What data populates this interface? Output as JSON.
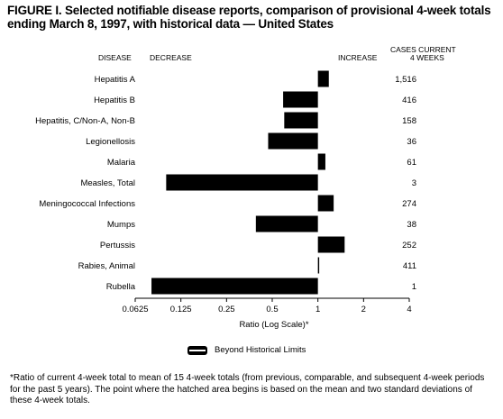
{
  "title": "FIGURE I. Selected notifiable disease reports, comparison of provisional 4-week totals ending March 8, 1997, with historical data — United States",
  "headers": {
    "disease": "DISEASE",
    "decrease": "DECREASE",
    "increase": "INCREASE",
    "cases_line1": "CASES CURRENT",
    "cases_line2": "4 WEEKS"
  },
  "legend": {
    "label": "Beyond Historical Limits"
  },
  "footnote": "*Ratio of current 4-week total to mean of 15 4-week totals (from previous, comparable, and subsequent 4-week periods for the past 5 years). The point where the hatched area begins is based on the mean and two standard deviations of these 4-week totals.",
  "colors": {
    "bar": "#000000",
    "axis": "#000000",
    "background": "#ffffff"
  },
  "chart_data": {
    "type": "bar",
    "orientation": "horizontal",
    "scale": "log2",
    "xlabel": "Ratio (Log Scale)*",
    "xlim": [
      0.0625,
      4
    ],
    "baseline": 1,
    "xticks": [
      0.0625,
      0.125,
      0.25,
      0.5,
      1,
      2,
      4
    ],
    "xtick_labels": [
      "0.0625",
      "0.125",
      "0.25",
      "0.5",
      "1",
      "2",
      "4"
    ],
    "categories": [
      "Hepatitis A",
      "Hepatitis B",
      "Hepatitis, C/Non-A, Non-B",
      "Legionellosis",
      "Malaria",
      "Measles, Total",
      "Meningococcal Infections",
      "Mumps",
      "Pertussis",
      "Rabies, Animal",
      "Rubella"
    ],
    "values": [
      1.18,
      0.59,
      0.6,
      0.47,
      1.12,
      0.1,
      1.27,
      0.39,
      1.5,
      1.02,
      0.08
    ],
    "cases": [
      "1,516",
      "416",
      "158",
      "36",
      "61",
      "3",
      "274",
      "38",
      "252",
      "411",
      "1"
    ]
  }
}
